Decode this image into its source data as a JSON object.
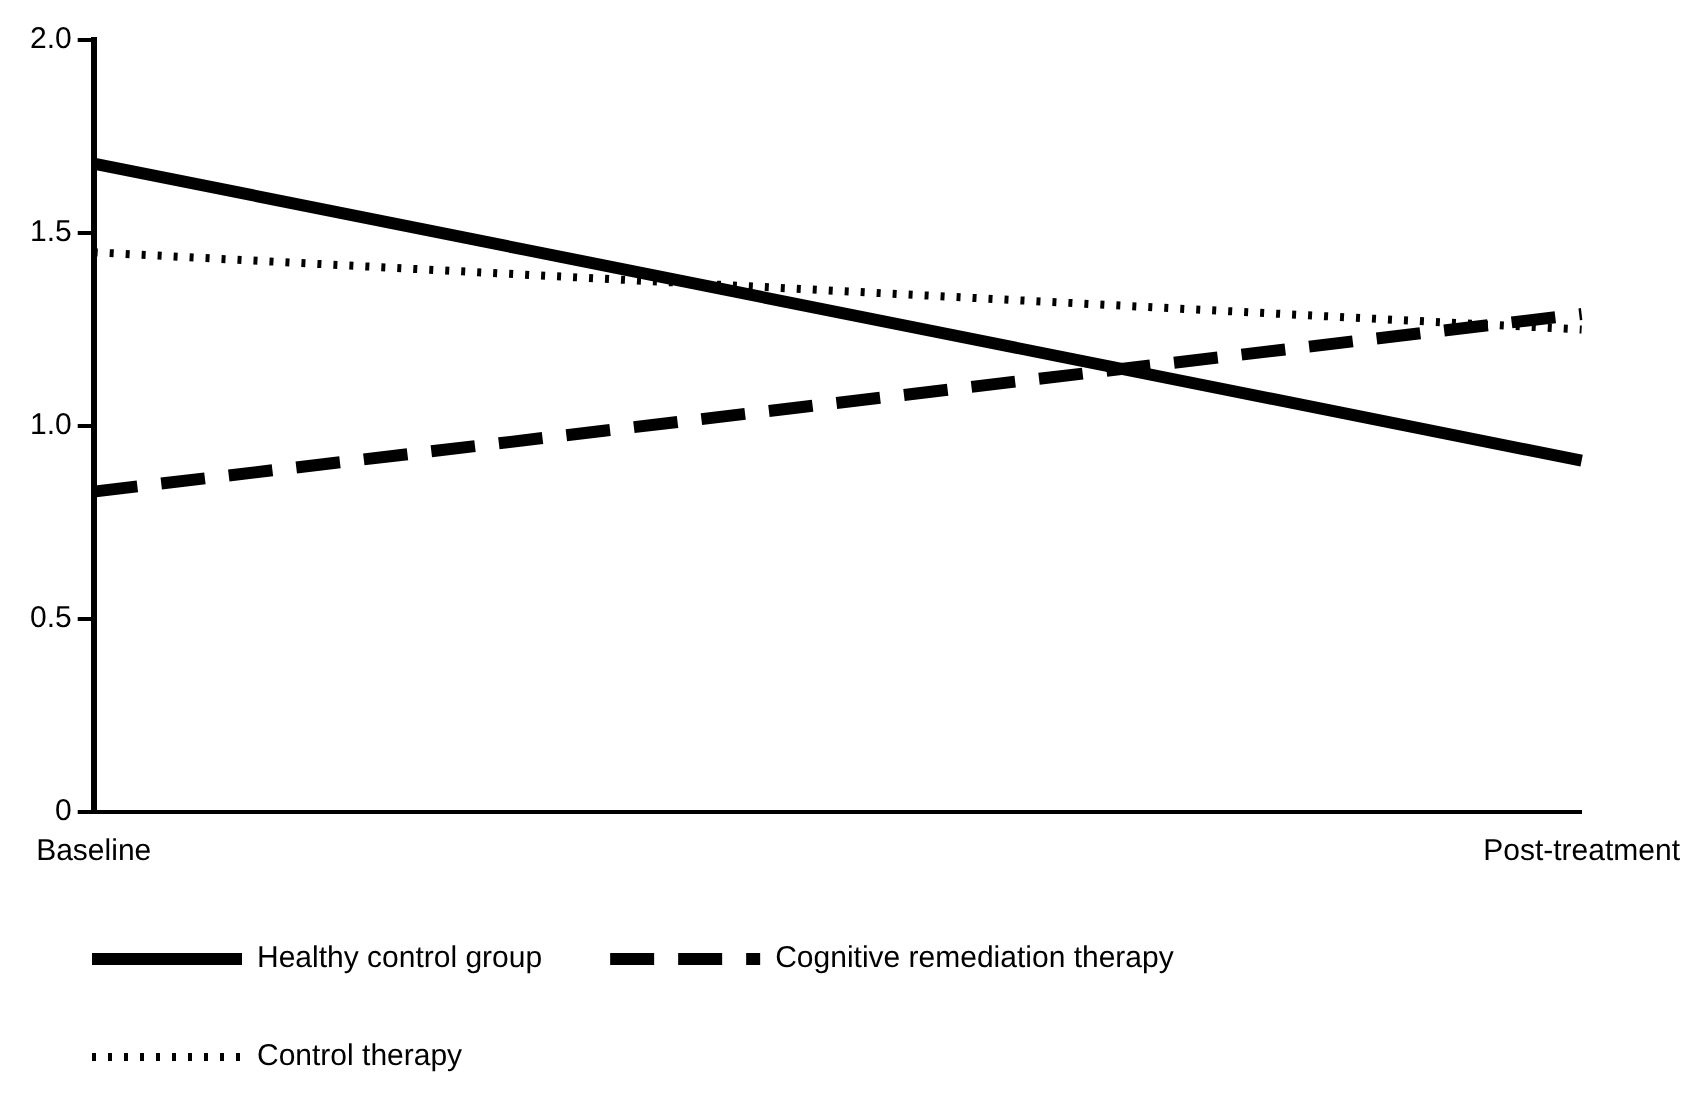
{
  "chart_data": {
    "type": "line",
    "categories": [
      "Baseline",
      "Post-treatment"
    ],
    "series": [
      {
        "name": "Healthy control group",
        "color": "#000000",
        "line_style": "solid",
        "values": [
          1.68,
          0.91
        ]
      },
      {
        "name": "Cognitive remediation therapy",
        "color": "#000000",
        "line_style": "dashed",
        "values": [
          0.83,
          1.29
        ]
      },
      {
        "name": "Control therapy",
        "color": "#000000",
        "line_style": "dotted",
        "values": [
          1.45,
          1.25
        ]
      }
    ],
    "ylim": [
      0,
      2
    ],
    "yticks": [
      0,
      {
        "value": 0.5,
        "label": "0.5"
      },
      {
        "value": 1,
        "label": "1.0"
      },
      {
        "value": 1.5,
        "label": "1.5"
      },
      {
        "value": 2,
        "label": "2.0"
      }
    ],
    "grid": false,
    "legend": "bottom",
    "marker": "none"
  }
}
